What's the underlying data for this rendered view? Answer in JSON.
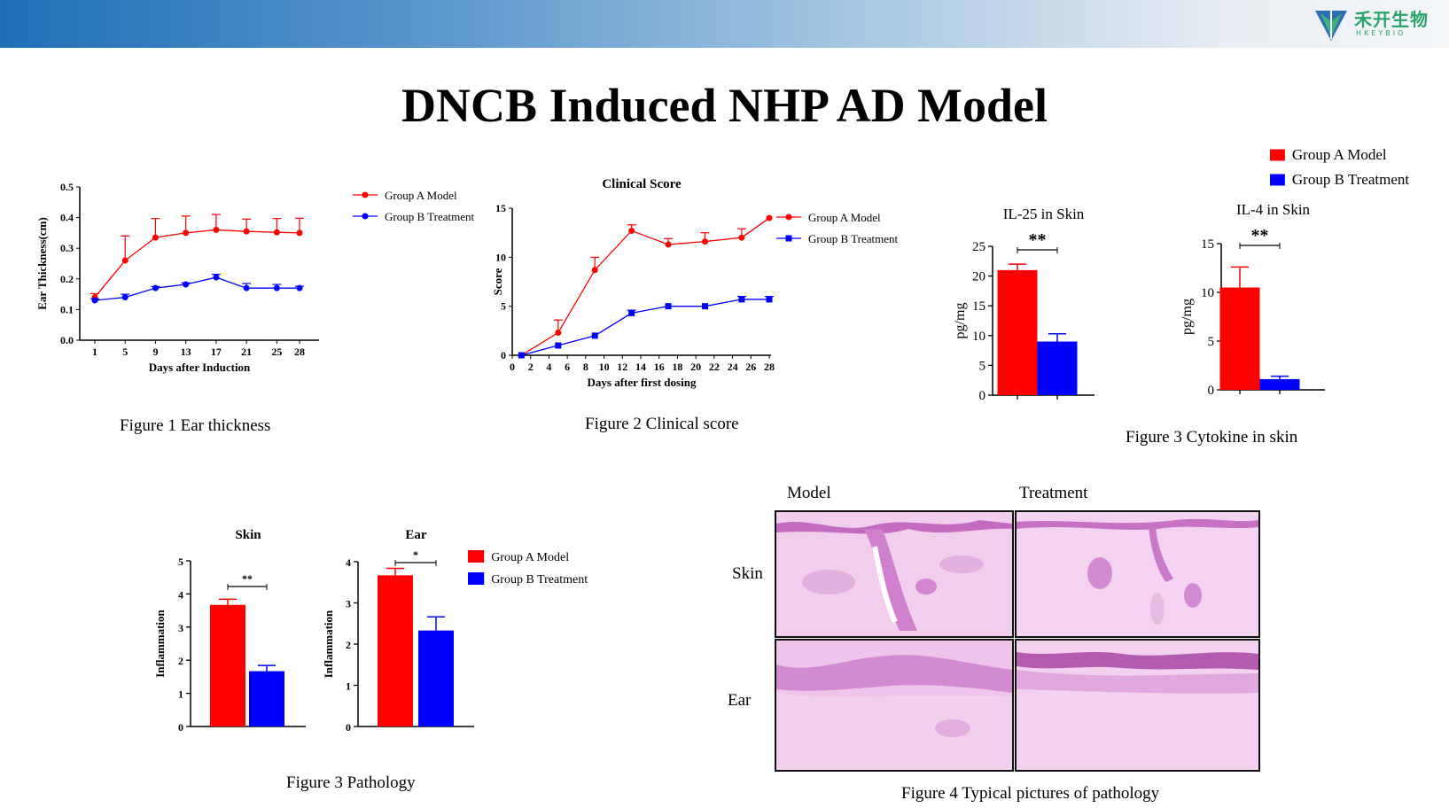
{
  "page": {
    "title": "DNCB Induced NHP AD Model",
    "brand": {
      "name": "禾开生物",
      "sub": "HKEYBIO"
    },
    "colors": {
      "group_a": "#ff0000",
      "group_b": "#0000ff",
      "tissue_light": "#efc8ea",
      "tissue_dark": "#c36cc0"
    }
  },
  "captions": {
    "fig1": "Figure 1 Ear thickness",
    "fig2": "Figure 2 Clinical score",
    "fig3a": "Figure 3 Cytokine in skin",
    "fig3b": "Figure 3 Pathology",
    "fig4": "Figure 4 Typical pictures of pathology"
  },
  "fig4": {
    "col_model": "Model",
    "col_treatment": "Treatment",
    "row_skin": "Skin",
    "row_ear": "Ear"
  },
  "chart_data": [
    {
      "id": "ear_thickness",
      "type": "line",
      "title": "",
      "xlabel": "Days after Induction",
      "ylabel": "Ear Thickness(cm)",
      "ylim": [
        0,
        0.5
      ],
      "yticks": [
        "0.0",
        "0.1",
        "0.2",
        "0.3",
        "0.4",
        "0.5"
      ],
      "x": [
        1,
        5,
        9,
        13,
        17,
        21,
        25,
        28
      ],
      "legend": "top-right",
      "series": [
        {
          "name": "Group A Model",
          "color": "#ff0000",
          "marker": "circle",
          "values": [
            0.14,
            0.26,
            0.335,
            0.35,
            0.36,
            0.355,
            0.352,
            0.35
          ],
          "err": [
            0.012,
            0.08,
            0.062,
            0.055,
            0.05,
            0.04,
            0.045,
            0.048
          ]
        },
        {
          "name": "Group B Treatment",
          "color": "#0000ff",
          "marker": "circle",
          "values": [
            0.13,
            0.14,
            0.17,
            0.182,
            0.205,
            0.17,
            0.17,
            0.17
          ],
          "err": [
            0.005,
            0.01,
            0.005,
            0.005,
            0.01,
            0.015,
            0.012,
            0.006
          ]
        }
      ]
    },
    {
      "id": "clinical_score",
      "type": "line",
      "title": "Clinical Score",
      "xlabel": "Days after first dosing",
      "ylabel": "Score",
      "ylim": [
        0,
        15
      ],
      "yticks": [
        "0",
        "5",
        "10",
        "15"
      ],
      "xticks": [
        0,
        2,
        4,
        6,
        8,
        10,
        12,
        14,
        16,
        18,
        20,
        22,
        24,
        26,
        28
      ],
      "legend": "top-right",
      "series": [
        {
          "name": "Group A Model",
          "color": "#ff0000",
          "marker": "circle",
          "x": [
            1,
            5,
            9,
            13,
            17,
            21,
            25,
            28
          ],
          "values": [
            0,
            2.3,
            8.7,
            12.7,
            11.3,
            11.6,
            12.0,
            14.0
          ],
          "err": [
            0,
            1.3,
            1.3,
            0.6,
            0.6,
            0.9,
            0.9,
            0
          ]
        },
        {
          "name": "Group B Treatment",
          "color": "#0000ff",
          "marker": "square",
          "x": [
            1,
            5,
            9,
            13,
            17,
            21,
            25,
            28
          ],
          "values": [
            0,
            1.0,
            2.0,
            4.3,
            5.0,
            5.0,
            5.7,
            5.7
          ],
          "err": [
            0,
            0,
            0,
            0.3,
            0,
            0,
            0.3,
            0.3
          ]
        }
      ]
    },
    {
      "id": "il25_skin",
      "type": "bar",
      "title": "IL-25 in Skin",
      "ylabel": "pg/mg",
      "ylim": [
        0,
        25
      ],
      "yticks": [
        "0",
        "5",
        "10",
        "15",
        "20",
        "25"
      ],
      "significance": "**",
      "series": [
        {
          "name": "Group A Model",
          "color": "#ff0000",
          "values": [
            21
          ],
          "err": [
            1.0
          ]
        },
        {
          "name": "Group B Treatment",
          "color": "#0000ff",
          "values": [
            9
          ],
          "err": [
            1.3
          ]
        }
      ]
    },
    {
      "id": "il4_skin",
      "type": "bar",
      "title": "IL-4 in Skin",
      "ylabel": "pg/mg",
      "ylim": [
        0,
        15
      ],
      "yticks": [
        "0",
        "5",
        "10",
        "15"
      ],
      "significance": "**",
      "legend": "top-right",
      "series": [
        {
          "name": "Group A Model",
          "color": "#ff0000",
          "values": [
            10.5
          ],
          "err": [
            2.1
          ]
        },
        {
          "name": "Group B Treatment",
          "color": "#0000ff",
          "values": [
            1.1
          ],
          "err": [
            0.3
          ]
        }
      ]
    },
    {
      "id": "path_skin",
      "type": "bar",
      "title": "Skin",
      "ylabel": "Inflammation",
      "ylim": [
        0,
        5
      ],
      "yticks": [
        "0",
        "1",
        "2",
        "3",
        "4",
        "5"
      ],
      "significance": "**",
      "series": [
        {
          "name": "Group A Model",
          "color": "#ff0000",
          "values": [
            3.67
          ],
          "err": [
            0.17
          ]
        },
        {
          "name": "Group B Treatment",
          "color": "#0000ff",
          "values": [
            1.67
          ],
          "err": [
            0.17
          ]
        }
      ]
    },
    {
      "id": "path_ear",
      "type": "bar",
      "title": "Ear",
      "ylabel": "Inflammation",
      "ylim": [
        0,
        4
      ],
      "yticks": [
        "0",
        "1",
        "2",
        "3",
        "4"
      ],
      "significance": "*",
      "legend": "top-right",
      "series": [
        {
          "name": "Group A Model",
          "color": "#ff0000",
          "values": [
            3.67
          ],
          "err": [
            0.17
          ]
        },
        {
          "name": "Group B Treatment",
          "color": "#0000ff",
          "values": [
            2.33
          ],
          "err": [
            0.33
          ]
        }
      ]
    }
  ]
}
